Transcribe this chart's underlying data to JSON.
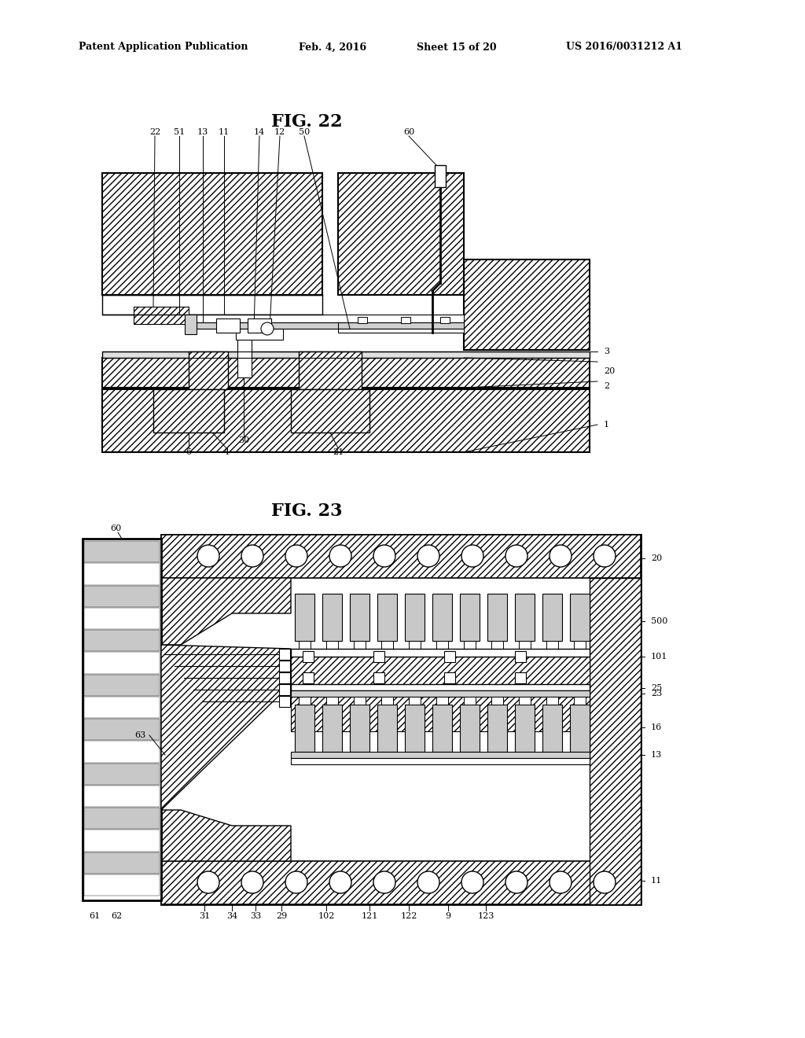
{
  "header": {
    "left": "Patent Application Publication",
    "mid1": "Feb. 4, 2016",
    "mid2": "Sheet 15 of 20",
    "right": "US 2016/0031212 A1"
  },
  "fig22_title": "FIG. 22",
  "fig23_title": "FIG. 23",
  "bg": "#ffffff"
}
